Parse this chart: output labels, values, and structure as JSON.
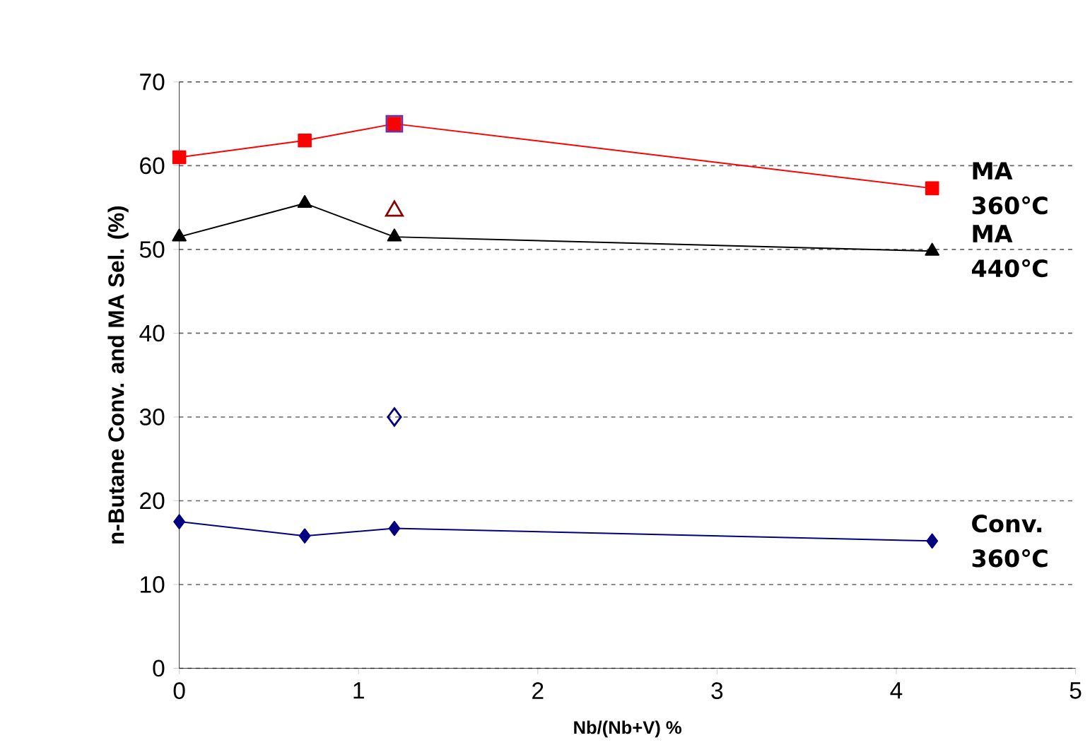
{
  "chart_data": {
    "type": "line",
    "xlabel": "Nb/(Nb+V) %",
    "ylabel": "n-Butane Conv. and MA Sel. (%)",
    "xlim": [
      0,
      5
    ],
    "xticks": [
      0,
      1,
      2,
      3,
      4,
      5
    ],
    "ylim": [
      0,
      70
    ],
    "yticks": [
      0,
      10,
      20,
      30,
      40,
      50,
      60,
      70
    ],
    "grid": "y",
    "legend": false,
    "series": [
      {
        "name": "MA 360℃",
        "marker": "square",
        "color": "#ff0000",
        "x": [
          0,
          0.7,
          1.2,
          4.2
        ],
        "values": [
          61,
          63,
          65,
          57.3
        ]
      },
      {
        "name": "MA 440℃",
        "marker": "triangle",
        "color": "#000000",
        "x": [
          0,
          0.7,
          1.2,
          4.2
        ],
        "values": [
          51.5,
          55.5,
          51.5,
          49.8
        ]
      },
      {
        "name": "Conv. 360℃",
        "marker": "diamond",
        "color": "#000080",
        "x": [
          0,
          0.7,
          1.2,
          4.2
        ],
        "values": [
          17.5,
          15.8,
          16.7,
          15.2
        ]
      },
      {
        "type": "scatter",
        "marker": "square",
        "color": "#7030a0",
        "x": [
          1.2
        ],
        "values": [
          65
        ]
      },
      {
        "type": "scatter",
        "marker": "triangle",
        "color": "#8b0000",
        "x": [
          1.2
        ],
        "values": [
          54.6
        ]
      },
      {
        "type": "scatter",
        "marker": "diamond",
        "color": "#000080",
        "x": [
          1.2
        ],
        "values": [
          30
        ]
      }
    ]
  }
}
